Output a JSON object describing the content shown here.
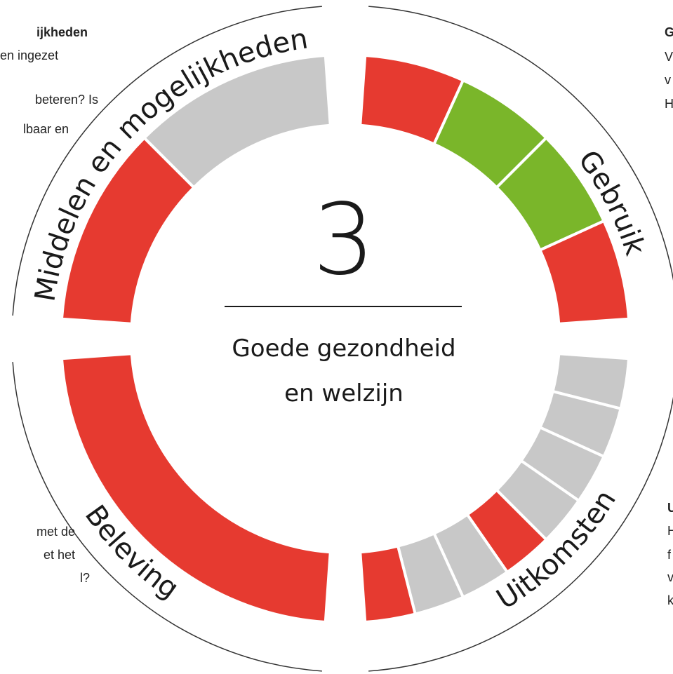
{
  "center": {
    "number": "3",
    "title_lines": [
      "Goede gezondheid",
      "en welzijn"
    ]
  },
  "quadrants": [
    {
      "label": "Gebruik",
      "segments": [
        "#e63a30",
        "#7ab62a",
        "#7ab62a",
        "#e63a30"
      ]
    },
    {
      "label": "Uitkomsten",
      "segments": [
        "#c8c8c8",
        "#c8c8c8",
        "#c8c8c8",
        "#c8c8c8",
        "#e63a30",
        "#c8c8c8",
        "#c8c8c8",
        "#e63a30"
      ]
    },
    {
      "label": "Beleving",
      "segments": [
        "#e63a30"
      ]
    },
    {
      "label": "Middelen en mogelijkheden",
      "segments": [
        "#e63a30",
        "#c8c8c8"
      ]
    }
  ],
  "side_texts": {
    "top_left": [
      "ijkheden",
      "en ingezet",
      "beteren? Is",
      "lbaar en"
    ],
    "top_right": [
      "G",
      "V",
      "v",
      "H"
    ],
    "bottom_left": [
      "met de",
      "et het",
      "l?"
    ],
    "bottom_right": [
      "U",
      "H",
      "f",
      "v",
      "k"
    ]
  }
}
